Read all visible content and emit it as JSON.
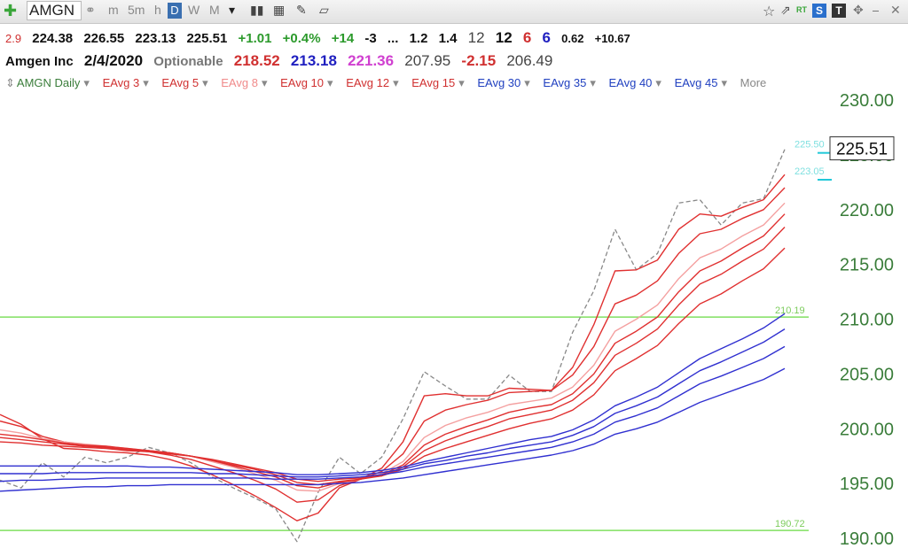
{
  "toolbar": {
    "symbol": "AMGN",
    "timeframes": [
      "m",
      "5m",
      "h",
      "D",
      "W",
      "M"
    ],
    "active_timeframe": "D",
    "rt_label": "RT",
    "s_label": "S",
    "t_label": "T"
  },
  "quote": {
    "field0": "2.9",
    "open": "224.38",
    "high": "226.55",
    "low": "223.13",
    "last": "225.51",
    "change": "+1.01",
    "change_pct": "+0.4%",
    "f1": "+14",
    "f2": "-3",
    "f3": "...",
    "f4": "1.2",
    "f5": "1.4",
    "f6": "12",
    "f7": "12",
    "f8": "6",
    "f9": "6",
    "f10": "0.62",
    "f11": "+10.67"
  },
  "quote2": {
    "name": "Amgen Inc",
    "date": "2/4/2020",
    "optionable": "Optionable",
    "v1": "218.52",
    "v2": "213.18",
    "v3": "221.36",
    "v4": "207.95",
    "v5": "-2.15",
    "v6": "206.49"
  },
  "legend": {
    "main": "AMGN Daily",
    "items": [
      "EAvg 3",
      "EAvg 5",
      "EAvg 8",
      "EAvg 10",
      "EAvg 12",
      "EAvg 15",
      "EAvg 30",
      "EAvg 35",
      "EAvg 40",
      "EAvg 45"
    ],
    "more": "More"
  },
  "colors": {
    "red": "#e03030",
    "pink": "#f4a0a0",
    "blue": "#3030d0",
    "green_line": "#80e060",
    "price": "#888888",
    "axis_text": "#3a7d3a"
  },
  "chart_data": {
    "type": "line",
    "ylim": [
      190,
      230
    ],
    "yticks": [
      190,
      195,
      200,
      205,
      210,
      215,
      220,
      225,
      230
    ],
    "ytick_labels": [
      "190.00",
      "195.00",
      "200.00",
      "205.00",
      "210.00",
      "215.00",
      "220.00",
      "225.00",
      "230.00"
    ],
    "last_price_label": "225.51",
    "hlines": [
      {
        "value": 210.19,
        "label": "210.19"
      },
      {
        "value": 190.72,
        "label": "190.72"
      }
    ],
    "right_labels": [
      {
        "value": 225.5,
        "label": "225.50"
      },
      {
        "value": 223.05,
        "label": "223.05"
      }
    ],
    "series": [
      {
        "name": "AMGN Daily",
        "style": "price",
        "values": [
          195.3,
          194.6,
          196.9,
          195.6,
          197.4,
          196.9,
          197.4,
          198.3,
          197.8,
          196.9,
          195.6,
          194.6,
          193.7,
          192.7,
          189.7,
          194.2,
          197.4,
          195.9,
          197.4,
          200.9,
          205.2,
          203.9,
          202.7,
          202.7,
          204.9,
          203.4,
          203.4,
          208.8,
          212.6,
          218.2,
          214.5,
          216.0,
          220.6,
          220.9,
          218.6,
          220.6,
          221.0,
          225.5
        ]
      },
      {
        "name": "EAvg 3",
        "style": "red",
        "values": [
          201.3,
          200.4,
          199.1,
          198.2,
          198.1,
          197.9,
          197.8,
          197.6,
          197.2,
          196.6,
          195.8,
          194.9,
          193.9,
          192.8,
          191.6,
          192.3,
          194.6,
          195.4,
          196.4,
          198.8,
          203.0,
          203.2,
          203.0,
          203.0,
          203.7,
          203.6,
          203.5,
          205.6,
          209.5,
          214.4,
          214.5,
          215.4,
          218.2,
          219.6,
          219.4,
          220.2,
          220.9,
          223.2
        ]
      },
      {
        "name": "EAvg 5",
        "style": "red",
        "values": [
          200.7,
          200.2,
          199.3,
          198.8,
          198.5,
          198.3,
          198.1,
          197.9,
          197.6,
          197.2,
          196.6,
          196.0,
          195.3,
          194.5,
          193.3,
          193.5,
          194.8,
          195.4,
          196.1,
          197.7,
          200.7,
          201.7,
          202.2,
          202.6,
          203.3,
          203.4,
          203.5,
          204.9,
          207.5,
          211.4,
          212.2,
          213.5,
          216.0,
          217.8,
          218.2,
          219.2,
          220.0,
          222.0
        ]
      },
      {
        "name": "EAvg 8",
        "style": "pink",
        "values": [
          199.9,
          199.6,
          199.1,
          198.8,
          198.6,
          198.4,
          198.2,
          198.0,
          197.8,
          197.5,
          197.0,
          196.5,
          195.9,
          195.3,
          194.4,
          194.3,
          195.0,
          195.4,
          195.9,
          197.0,
          199.2,
          200.3,
          201.0,
          201.5,
          202.2,
          202.5,
          202.8,
          203.8,
          205.8,
          208.9,
          210.0,
          211.3,
          213.7,
          215.6,
          216.4,
          217.6,
          218.6,
          220.6
        ]
      },
      {
        "name": "EAvg 10",
        "style": "red",
        "values": [
          199.5,
          199.3,
          199.0,
          198.7,
          198.5,
          198.4,
          198.2,
          198.0,
          197.8,
          197.5,
          197.1,
          196.6,
          196.1,
          195.6,
          194.8,
          194.6,
          195.1,
          195.4,
          195.8,
          196.7,
          198.5,
          199.5,
          200.2,
          200.8,
          201.5,
          201.9,
          202.2,
          203.2,
          205.0,
          207.8,
          208.9,
          210.2,
          212.5,
          214.4,
          215.3,
          216.5,
          217.6,
          219.6
        ]
      },
      {
        "name": "EAvg 12",
        "style": "red",
        "values": [
          199.2,
          199.0,
          198.8,
          198.6,
          198.4,
          198.3,
          198.1,
          198.0,
          197.8,
          197.5,
          197.1,
          196.7,
          196.3,
          195.8,
          195.1,
          194.9,
          195.2,
          195.4,
          195.7,
          196.5,
          198.0,
          198.9,
          199.6,
          200.2,
          200.9,
          201.3,
          201.7,
          202.6,
          204.2,
          206.7,
          207.8,
          209.1,
          211.3,
          213.2,
          214.1,
          215.3,
          216.4,
          218.4
        ]
      },
      {
        "name": "EAvg 15",
        "style": "red",
        "values": [
          198.8,
          198.7,
          198.5,
          198.4,
          198.3,
          198.2,
          198.0,
          197.9,
          197.7,
          197.5,
          197.2,
          196.8,
          196.4,
          196.0,
          195.4,
          195.2,
          195.4,
          195.5,
          195.7,
          196.3,
          197.5,
          198.2,
          198.8,
          199.4,
          200.0,
          200.5,
          200.9,
          201.7,
          203.1,
          205.3,
          206.4,
          207.6,
          209.6,
          211.4,
          212.3,
          213.5,
          214.6,
          216.5
        ]
      },
      {
        "name": "EAvg 30",
        "style": "blue",
        "values": [
          196.6,
          196.6,
          196.6,
          196.6,
          196.6,
          196.6,
          196.6,
          196.5,
          196.5,
          196.4,
          196.3,
          196.2,
          196.1,
          196.0,
          195.8,
          195.8,
          195.9,
          196.0,
          196.2,
          196.5,
          197.0,
          197.4,
          197.8,
          198.2,
          198.6,
          199.0,
          199.3,
          199.9,
          200.8,
          202.1,
          202.9,
          203.8,
          205.1,
          206.4,
          207.3,
          208.2,
          209.2,
          210.5
        ]
      },
      {
        "name": "EAvg 35",
        "style": "blue",
        "values": [
          195.9,
          195.9,
          195.9,
          196.0,
          196.0,
          196.0,
          196.0,
          196.0,
          196.0,
          196.0,
          195.9,
          195.9,
          195.8,
          195.7,
          195.6,
          195.6,
          195.7,
          195.8,
          196.0,
          196.3,
          196.8,
          197.1,
          197.5,
          197.8,
          198.2,
          198.5,
          198.8,
          199.4,
          200.2,
          201.4,
          202.1,
          202.9,
          204.1,
          205.3,
          206.1,
          207.0,
          207.9,
          209.1
        ]
      },
      {
        "name": "EAvg 40",
        "style": "blue",
        "values": [
          195.2,
          195.3,
          195.3,
          195.4,
          195.4,
          195.5,
          195.5,
          195.5,
          195.5,
          195.5,
          195.5,
          195.5,
          195.5,
          195.4,
          195.4,
          195.4,
          195.5,
          195.6,
          195.8,
          196.1,
          196.5,
          196.8,
          197.1,
          197.4,
          197.7,
          198.0,
          198.3,
          198.8,
          199.5,
          200.6,
          201.2,
          201.9,
          203.0,
          204.1,
          204.8,
          205.6,
          206.4,
          207.5
        ]
      },
      {
        "name": "EAvg 45",
        "style": "blue",
        "values": [
          194.3,
          194.4,
          194.5,
          194.6,
          194.7,
          194.7,
          194.8,
          194.8,
          194.9,
          194.9,
          194.9,
          194.9,
          194.9,
          194.9,
          194.9,
          194.9,
          195.0,
          195.1,
          195.3,
          195.5,
          195.8,
          196.1,
          196.4,
          196.7,
          197.0,
          197.3,
          197.6,
          198.0,
          198.6,
          199.5,
          200.0,
          200.6,
          201.5,
          202.4,
          203.1,
          203.8,
          204.5,
          205.5
        ]
      }
    ]
  }
}
